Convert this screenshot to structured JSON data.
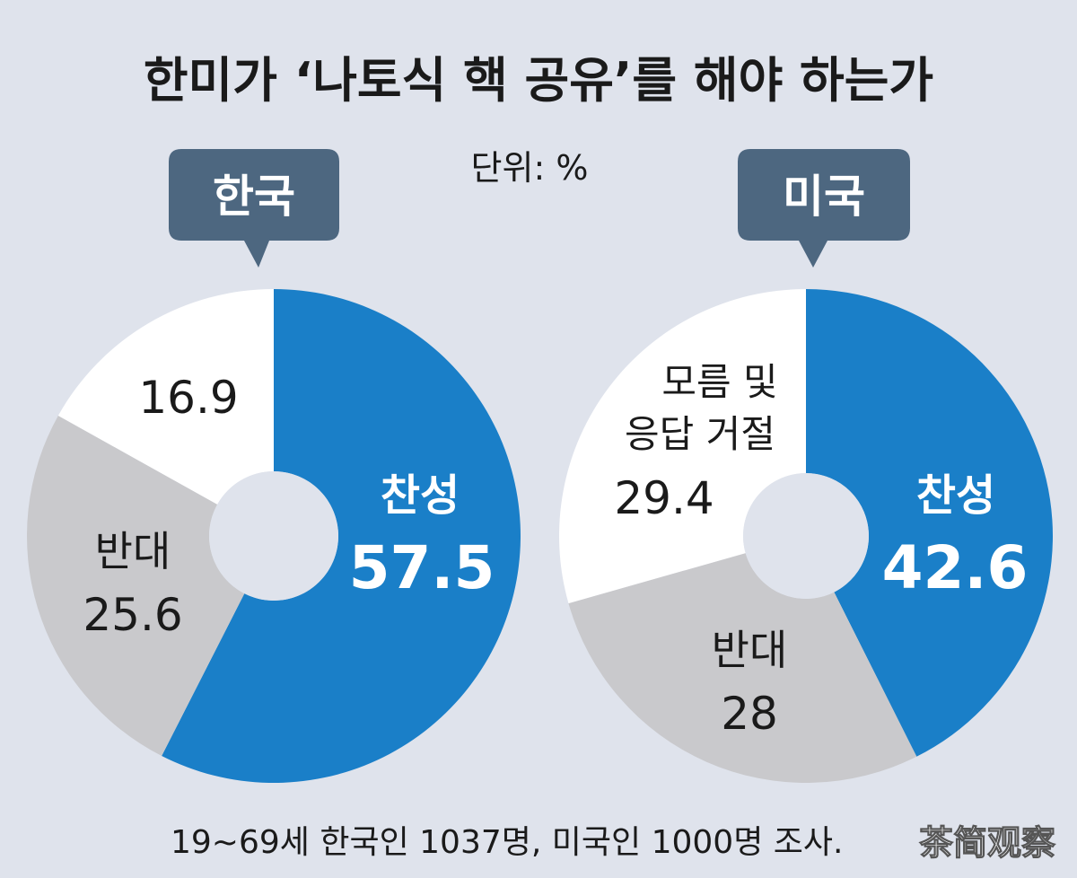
{
  "title": "한미가 ‘나토식 핵 공유’를 해야 하는가",
  "unit_label": "단위: %",
  "footnote": "19~69세 한국인 1037명, 미국인 1000명 조사.",
  "watermark": "茶简观察",
  "colors": {
    "background": "#dfe3ec",
    "favor": "#1a7fc8",
    "oppose": "#c9c9cc",
    "unknown": "#ffffff",
    "bubble": "#4d6780"
  },
  "chart_data": [
    {
      "type": "pie",
      "title": "한국",
      "slices": [
        {
          "label": "찬성",
          "value": 57.5,
          "display": "57.5",
          "color": "#1a7fc8"
        },
        {
          "label": "반대",
          "value": 25.6,
          "display": "25.6",
          "color": "#c9c9cc"
        },
        {
          "label": "",
          "value": 16.9,
          "display": "16.9",
          "color": "#ffffff"
        }
      ]
    },
    {
      "type": "pie",
      "title": "미국",
      "slices": [
        {
          "label": "찬성",
          "value": 42.6,
          "display": "42.6",
          "color": "#1a7fc8"
        },
        {
          "label": "반대",
          "value": 28,
          "display": "28",
          "color": "#c9c9cc"
        },
        {
          "label": "모름 및 응답 거절",
          "label_lines": [
            "모름 및",
            "응답 거절"
          ],
          "value": 29.4,
          "display": "29.4",
          "color": "#ffffff"
        }
      ]
    }
  ]
}
